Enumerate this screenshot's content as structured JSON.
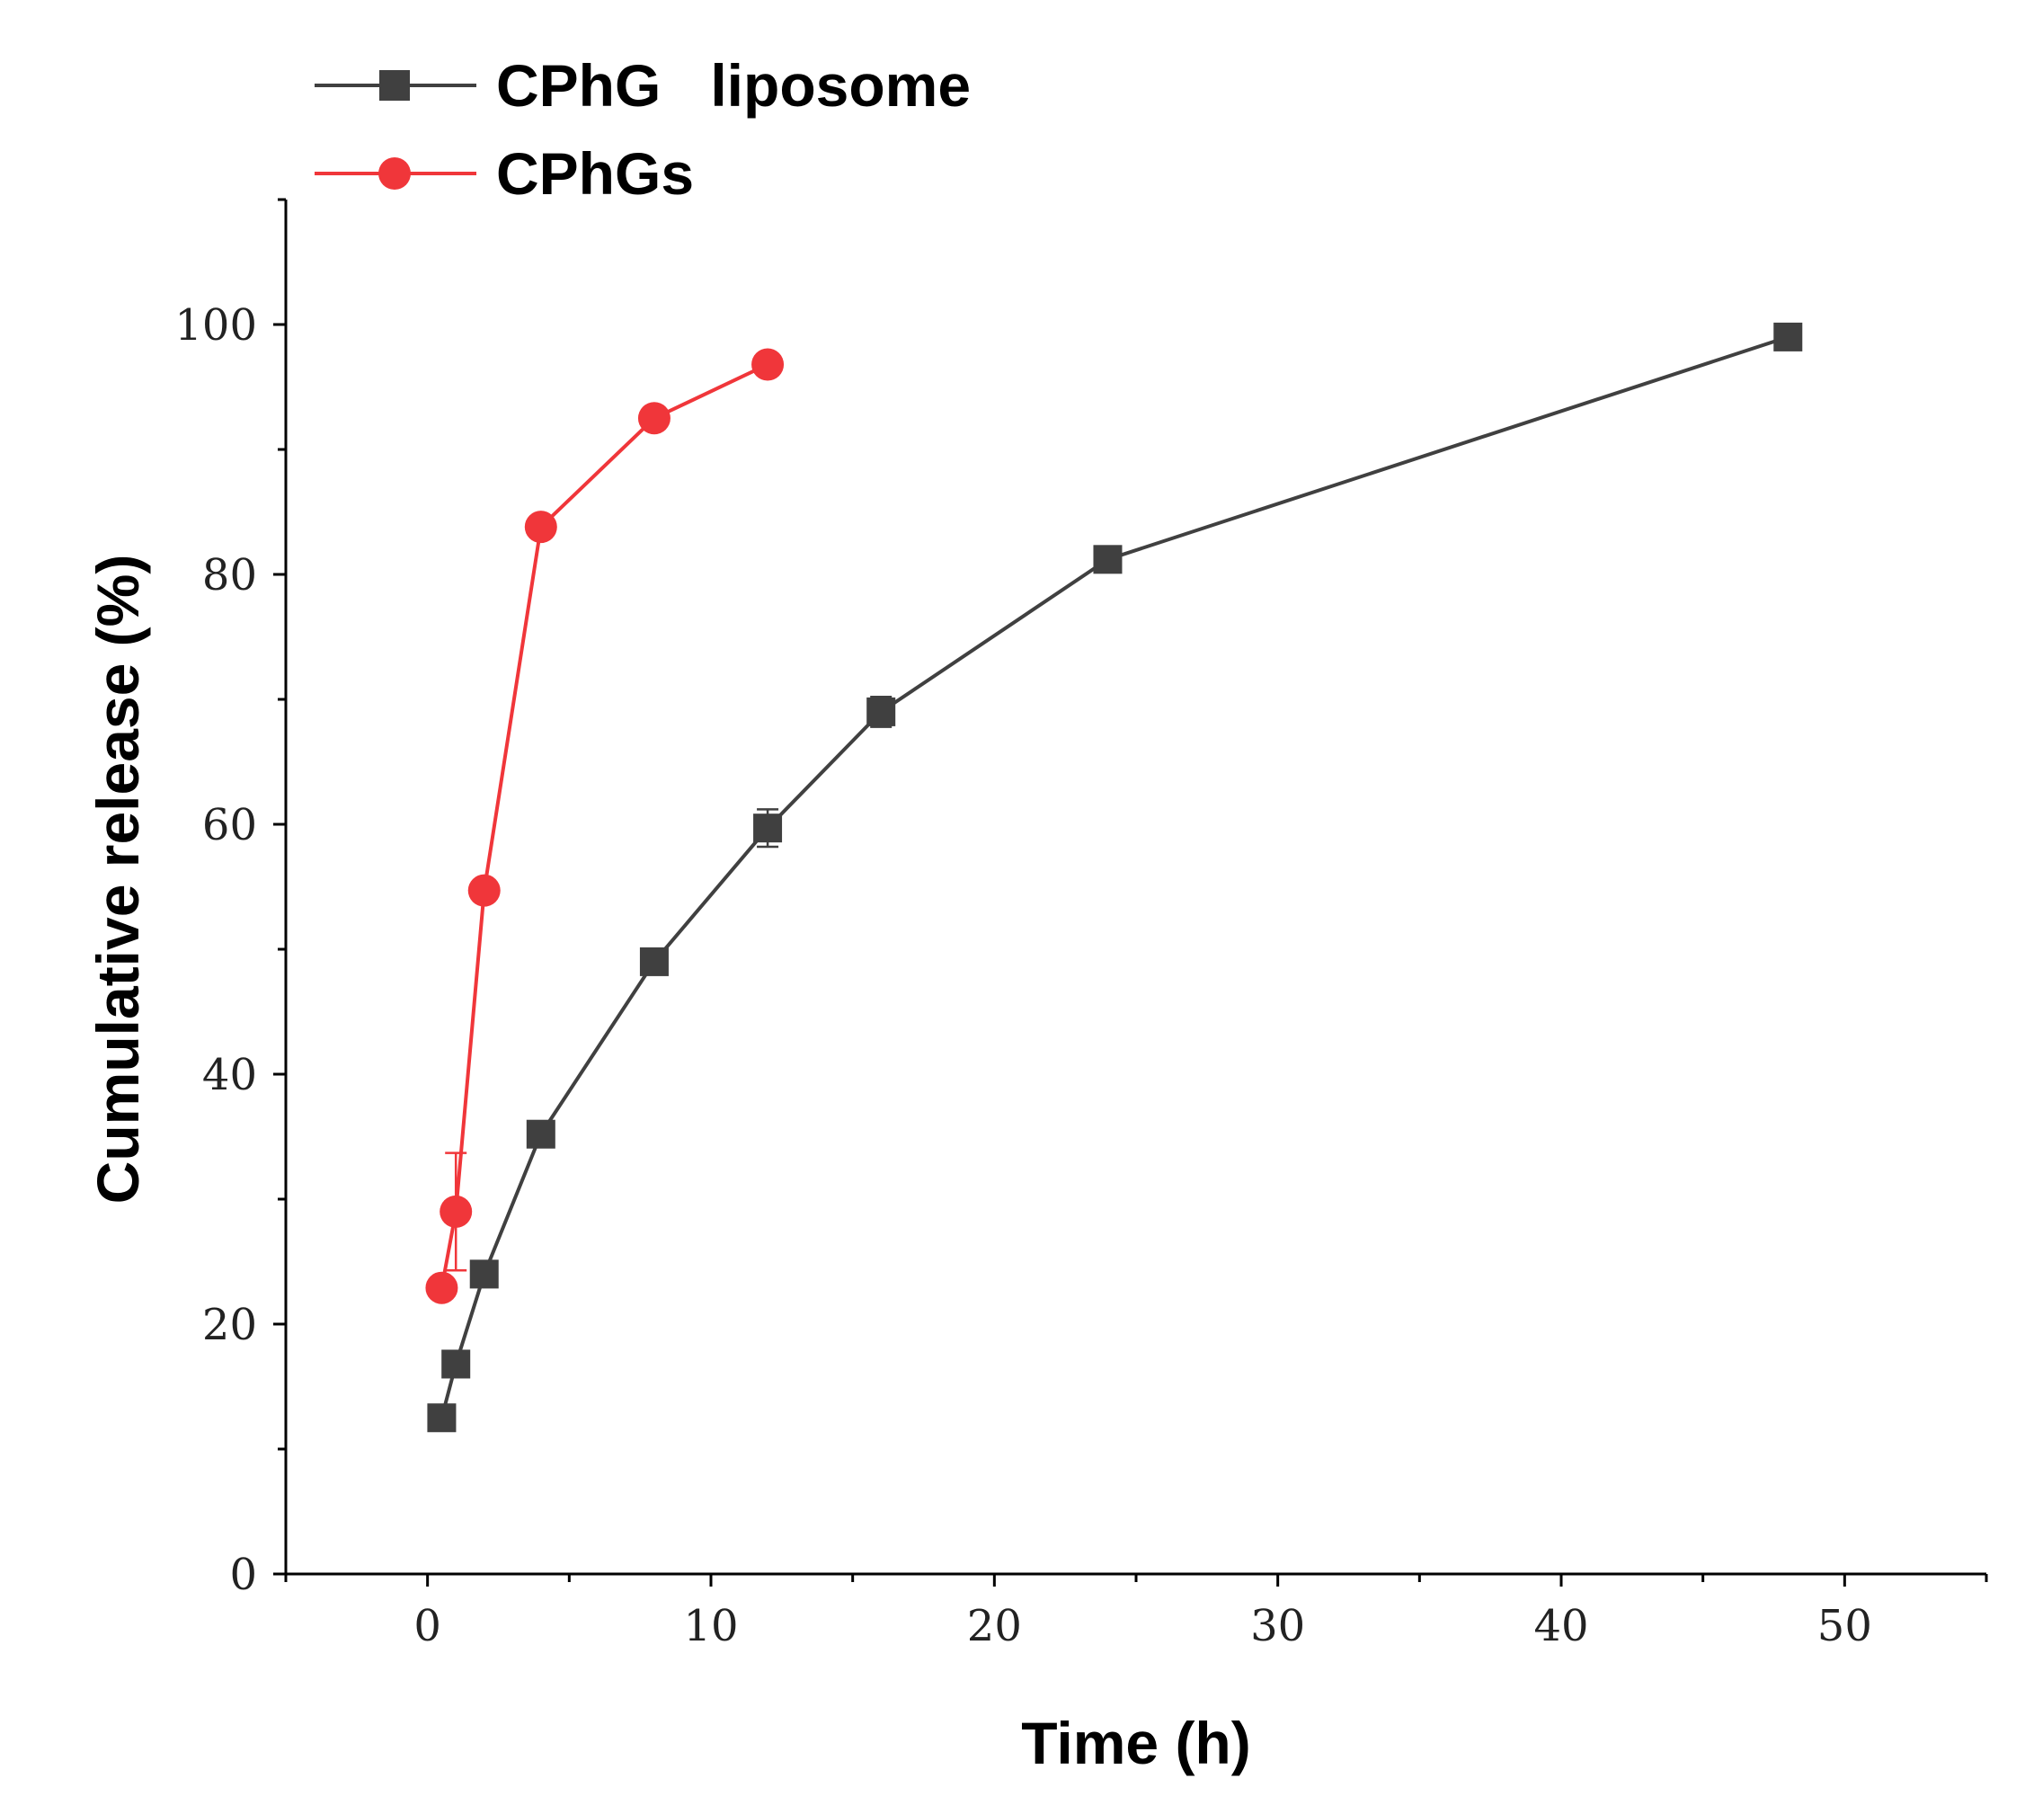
{
  "chart_data": {
    "type": "line",
    "title": "",
    "xlabel": "Time (h)",
    "ylabel": "Cumulative release (%)",
    "xlim": [
      -5,
      55
    ],
    "ylim": [
      0,
      110
    ],
    "xticks": [
      0,
      10,
      20,
      30,
      40,
      50
    ],
    "yticks": [
      0,
      20,
      40,
      60,
      80,
      100
    ],
    "xtick_labels": [
      "0",
      "10",
      "20",
      "30",
      "40",
      "50"
    ],
    "ytick_labels": [
      "0",
      "20",
      "40",
      "60",
      "80",
      "100"
    ],
    "grid": false,
    "legend_position": "top-left",
    "series": [
      {
        "name": "CPhG   liposome",
        "color": "#404040",
        "marker": "square",
        "x": [
          0.5,
          1,
          2,
          4,
          8,
          12,
          16,
          24,
          48
        ],
        "y": [
          12.5,
          16.8,
          24.0,
          35.2,
          49.0,
          59.7,
          69.0,
          81.2,
          99.0
        ],
        "err": [
          0.5,
          0.5,
          0.6,
          0.7,
          0.8,
          1.5,
          1.2,
          0.8,
          0.6
        ]
      },
      {
        "name": "CPhGs",
        "color": "#f0363a",
        "marker": "circle",
        "x": [
          0.5,
          1,
          2,
          4,
          8,
          12
        ],
        "y": [
          22.9,
          29.0,
          54.7,
          83.8,
          92.5,
          96.8
        ],
        "err": [
          0.5,
          4.7,
          0.8,
          0.8,
          0.6,
          0.5
        ]
      }
    ]
  }
}
